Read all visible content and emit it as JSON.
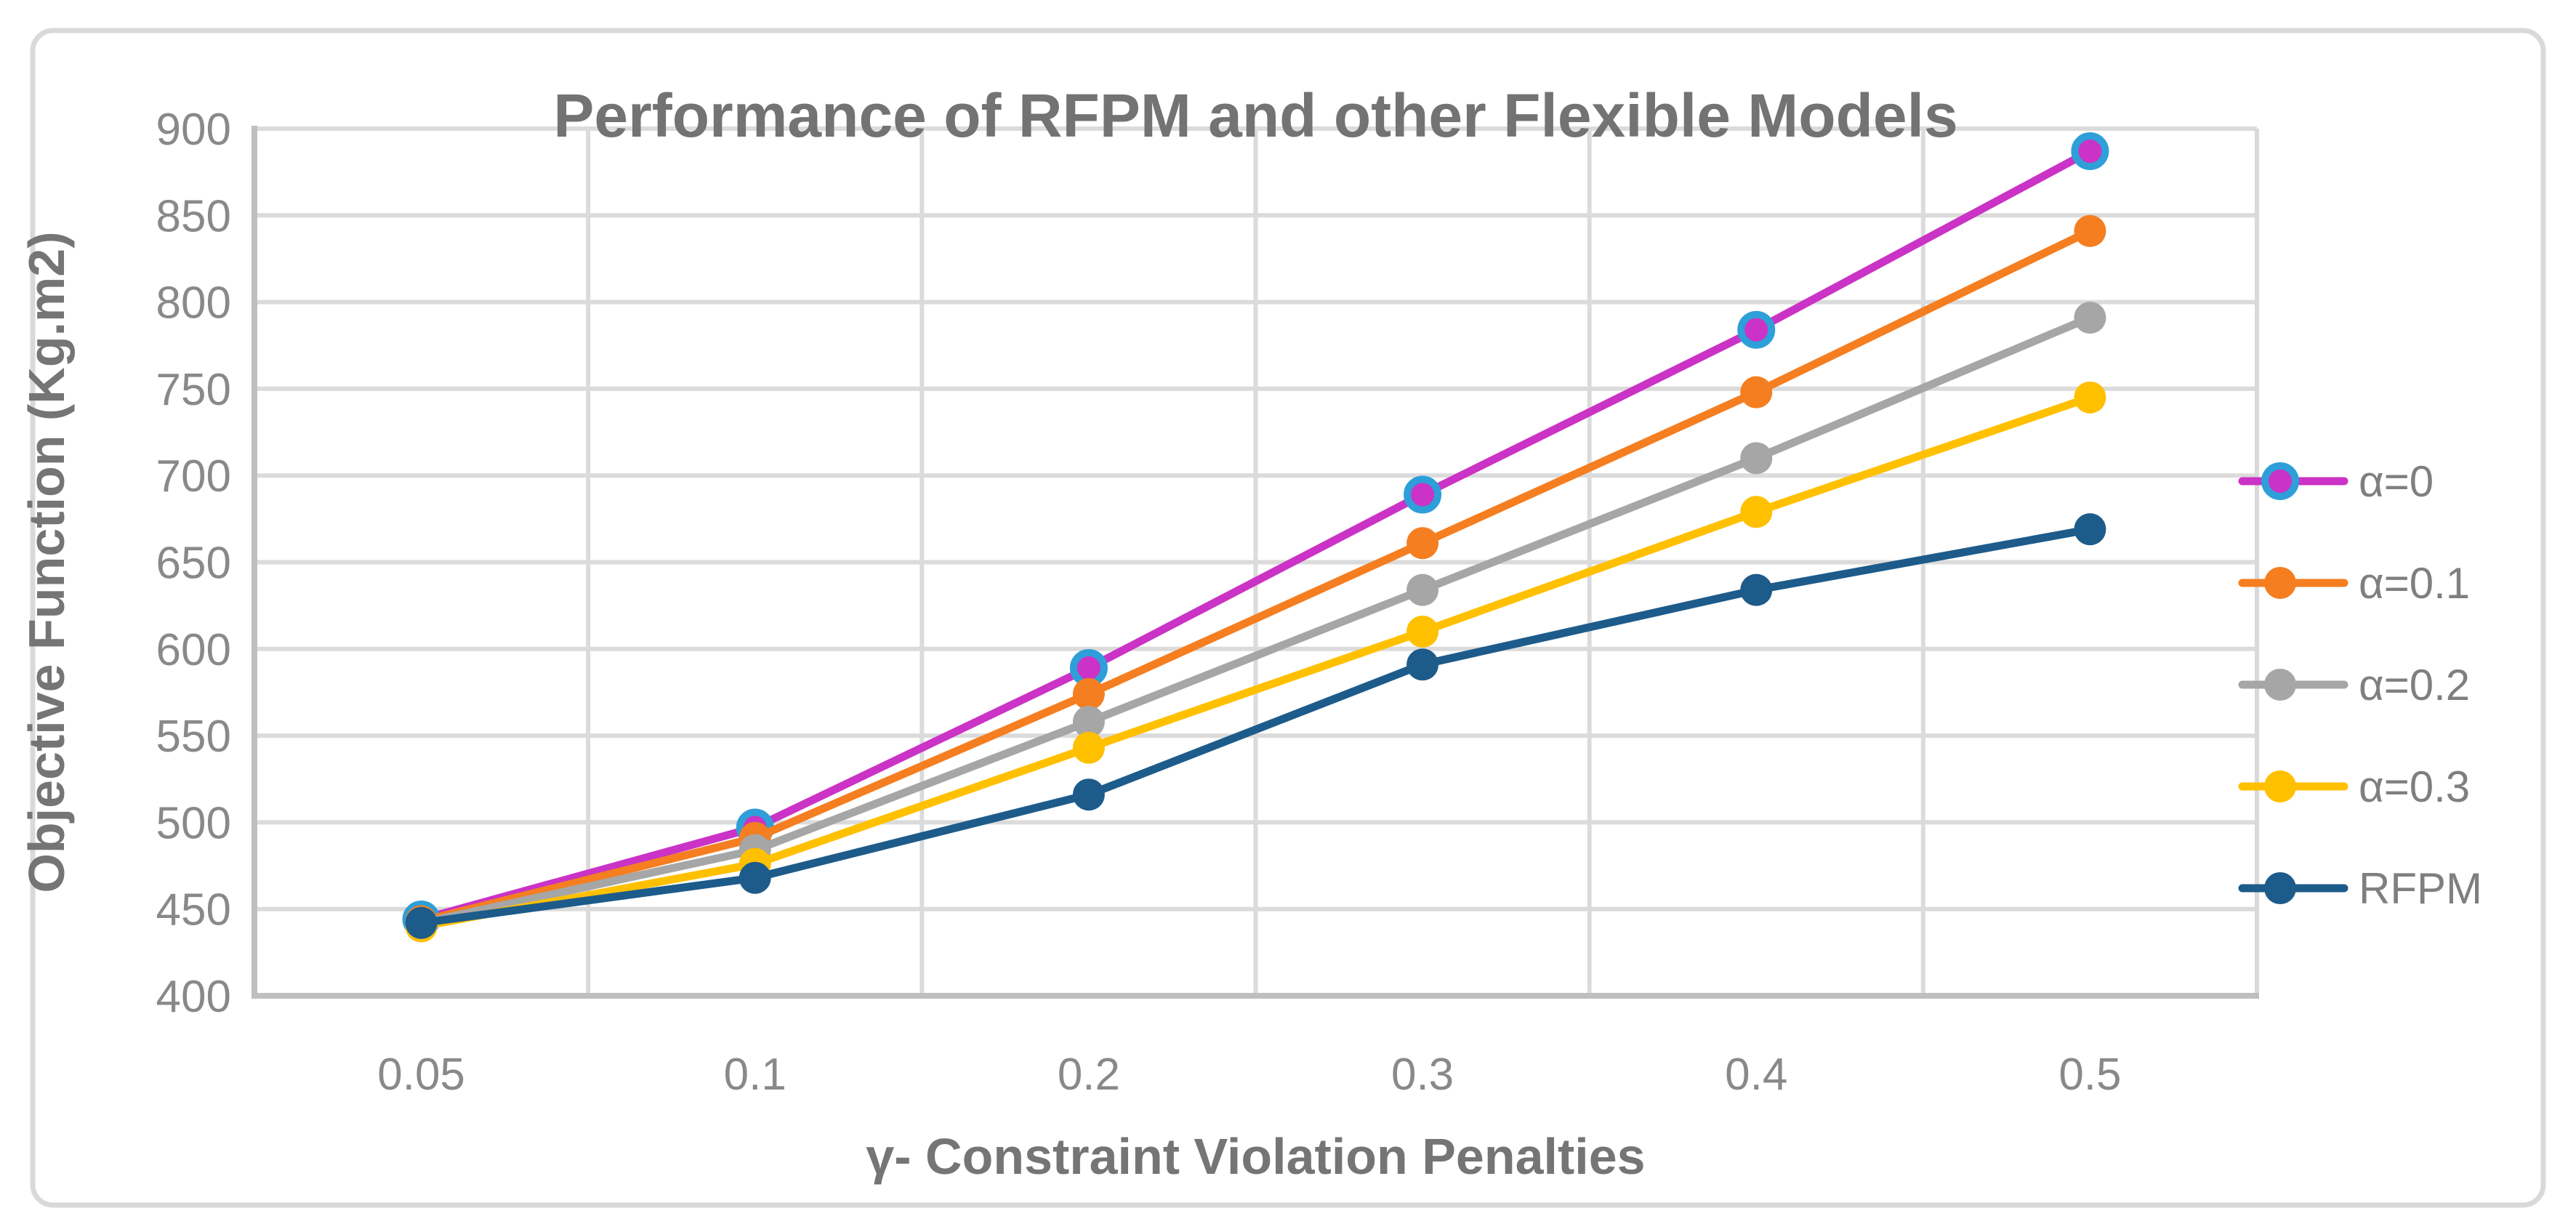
{
  "figure": {
    "frame_border_color": "#D9D9D9",
    "background_color": "#FFFFFF"
  },
  "styles": {
    "gridline_color": "#DBDBDB",
    "axis_line_color": "#BFBFBF",
    "plot_border_color": "#D9D9D9",
    "title_color": "#737373",
    "axis_title_color": "#757575",
    "tick_label_color": "#898989",
    "legend_text_color": "#7F7F7F"
  },
  "chart_data": {
    "type": "line",
    "title": "Performance of RFPM and other Flexible Models",
    "xlabel": "γ- Constraint Violation Penalties",
    "ylabel": "Objective Function (Kg.m2)",
    "categories": [
      "0.05",
      "0.1",
      "0.2",
      "0.3",
      "0.4",
      "0.5"
    ],
    "y_ticks": [
      900,
      850,
      800,
      750,
      700,
      650,
      600,
      550,
      500,
      450,
      400
    ],
    "ylim": [
      400,
      900
    ],
    "grid": true,
    "legend_position": "right",
    "series": [
      {
        "name": "α=0",
        "color": "#CB32C6",
        "marker_ring_color": "#2E9FD8",
        "values": [
          444,
          497,
          589,
          689,
          784,
          887
        ]
      },
      {
        "name": "α=0.1",
        "color": "#F57E20",
        "values": [
          443,
          491,
          574,
          661,
          748,
          841
        ]
      },
      {
        "name": "α=0.2",
        "color": "#A6A6A6",
        "values": [
          442,
          484,
          558,
          634,
          710,
          791
        ]
      },
      {
        "name": "α=0.3",
        "color": "#FFC000",
        "values": [
          440,
          476,
          543,
          610,
          679,
          745
        ]
      },
      {
        "name": "RFPM",
        "color": "#1D5B8B",
        "values": [
          442,
          468,
          516,
          591,
          634,
          669
        ]
      }
    ]
  }
}
